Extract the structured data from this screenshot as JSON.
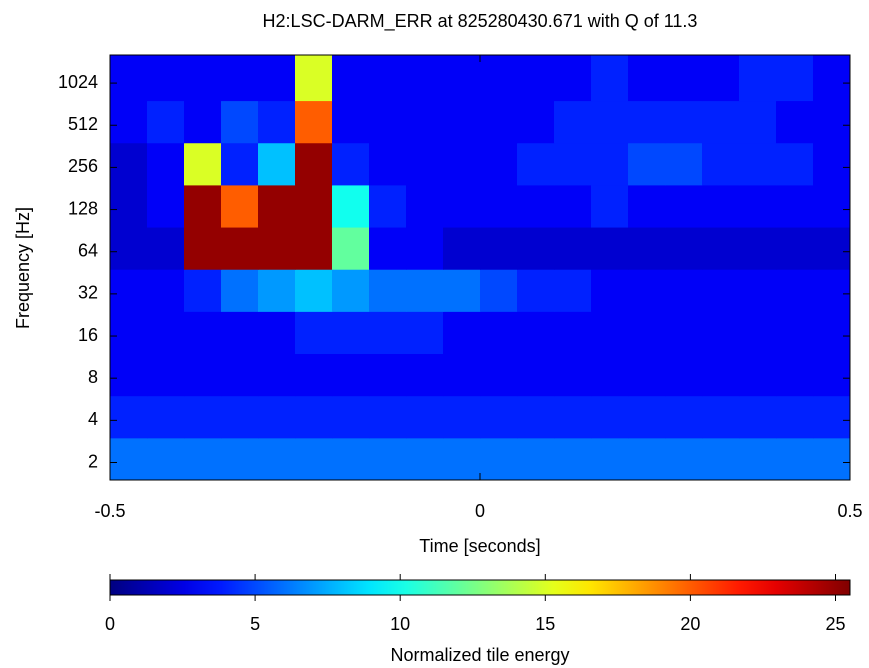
{
  "chart_data": {
    "type": "heatmap",
    "title": "H2:LSC-DARM_ERR at 825280430.671 with Q of 11.3",
    "xlabel": "Time [seconds]",
    "ylabel": "Frequency [Hz]",
    "xlim": [
      -0.5,
      0.5
    ],
    "xticks": [
      -0.5,
      0,
      0.5
    ],
    "ylim": [
      1.5,
      1625
    ],
    "yticks": [
      2,
      4,
      8,
      16,
      32,
      64,
      128,
      256,
      512,
      1024
    ],
    "log_y": true,
    "xbins": [
      -0.5,
      -0.45,
      -0.4,
      -0.35,
      -0.3,
      -0.25,
      -0.2,
      -0.15,
      -0.1,
      -0.05,
      0,
      0.05,
      0.1,
      0.15,
      0.2,
      0.25,
      0.3,
      0.35,
      0.4,
      0.45,
      0.5
    ],
    "ybins": [
      1.5,
      3,
      6,
      12,
      24,
      48,
      96,
      192,
      384,
      768,
      1625
    ],
    "z": [
      [
        6,
        6,
        6,
        6,
        6,
        6,
        6,
        6,
        6,
        6,
        6,
        6,
        6,
        6,
        6,
        6,
        6,
        6,
        6,
        6
      ],
      [
        4,
        4,
        4,
        4,
        4,
        4,
        4,
        4,
        4,
        4,
        4,
        4,
        4,
        4,
        4,
        4,
        4,
        4,
        4,
        4
      ],
      [
        3,
        3,
        3,
        3,
        3,
        3,
        3,
        3,
        3,
        3,
        3,
        3,
        3,
        3,
        3,
        3,
        3,
        3,
        3,
        3
      ],
      [
        3,
        3,
        3,
        3,
        3,
        4,
        4,
        4,
        4,
        3,
        3,
        3,
        3,
        3,
        3,
        3,
        3,
        3,
        3,
        3
      ],
      [
        3,
        3,
        4,
        6,
        7,
        8,
        7,
        6,
        6,
        6,
        5,
        4,
        4,
        3,
        3,
        3,
        3,
        3,
        3,
        3
      ],
      [
        2,
        2,
        25,
        25,
        25,
        25,
        12,
        3,
        3,
        2,
        2,
        2,
        2,
        2,
        2,
        2,
        2,
        2,
        2,
        2
      ],
      [
        2,
        3,
        25,
        20,
        25,
        25,
        10,
        4,
        3,
        3,
        3,
        3,
        3,
        4,
        3,
        3,
        3,
        3,
        3,
        3
      ],
      [
        2,
        3,
        15,
        4,
        8,
        25,
        4,
        3,
        3,
        3,
        3,
        4,
        4,
        4,
        5,
        5,
        4,
        4,
        4,
        3
      ],
      [
        3,
        4,
        3,
        5,
        4,
        20,
        3,
        3,
        3,
        3,
        3,
        3,
        4,
        4,
        4,
        4,
        4,
        4,
        3,
        3
      ],
      [
        3,
        3,
        3,
        3,
        3,
        15,
        3,
        3,
        3,
        3,
        3,
        3,
        3,
        4,
        3,
        3,
        3,
        4,
        4,
        3
      ]
    ],
    "colormap": "jet",
    "colorbar": {
      "label": "Normalized tile energy",
      "lim": [
        0,
        25.5
      ],
      "ticks": [
        0,
        5,
        10,
        15,
        20,
        25
      ]
    }
  }
}
